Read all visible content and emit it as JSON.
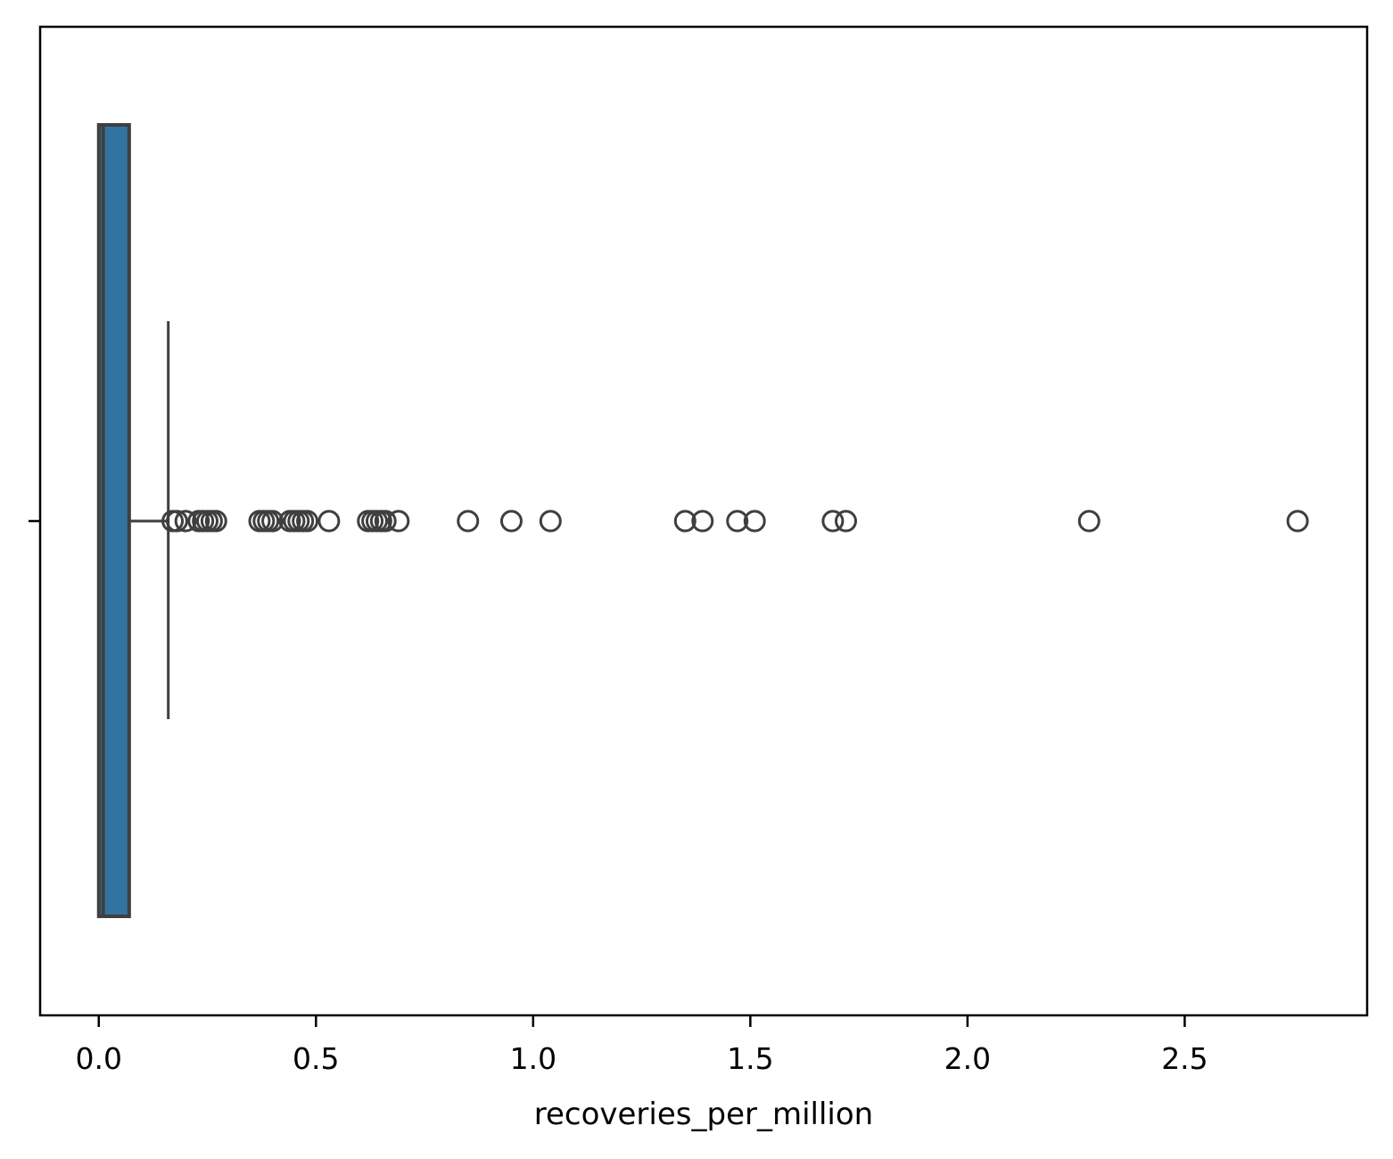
{
  "chart_data": {
    "type": "box",
    "orientation": "horizontal",
    "title": "",
    "xlabel": "recoveries_per_million",
    "ylabel": "",
    "xlim": [
      -0.135,
      2.92
    ],
    "xticks": [
      0.0,
      0.5,
      1.0,
      1.5,
      2.0,
      2.5
    ],
    "xtick_labels": [
      "0.0",
      "0.5",
      "1.0",
      "1.5",
      "2.0",
      "2.5"
    ],
    "grid": false,
    "box": {
      "min": 0.0,
      "q1": 0.0,
      "median": 0.01,
      "q3": 0.07,
      "whisker_high": 0.16,
      "fill_color": "#3274a1",
      "edge_color": "#3f3f3f"
    },
    "outliers": [
      0.17,
      0.18,
      0.2,
      0.23,
      0.24,
      0.25,
      0.26,
      0.27,
      0.37,
      0.38,
      0.39,
      0.4,
      0.44,
      0.45,
      0.46,
      0.47,
      0.48,
      0.53,
      0.62,
      0.63,
      0.64,
      0.65,
      0.66,
      0.69,
      0.85,
      0.95,
      1.04,
      1.35,
      1.39,
      1.47,
      1.51,
      1.69,
      1.72,
      2.28,
      2.76
    ]
  }
}
